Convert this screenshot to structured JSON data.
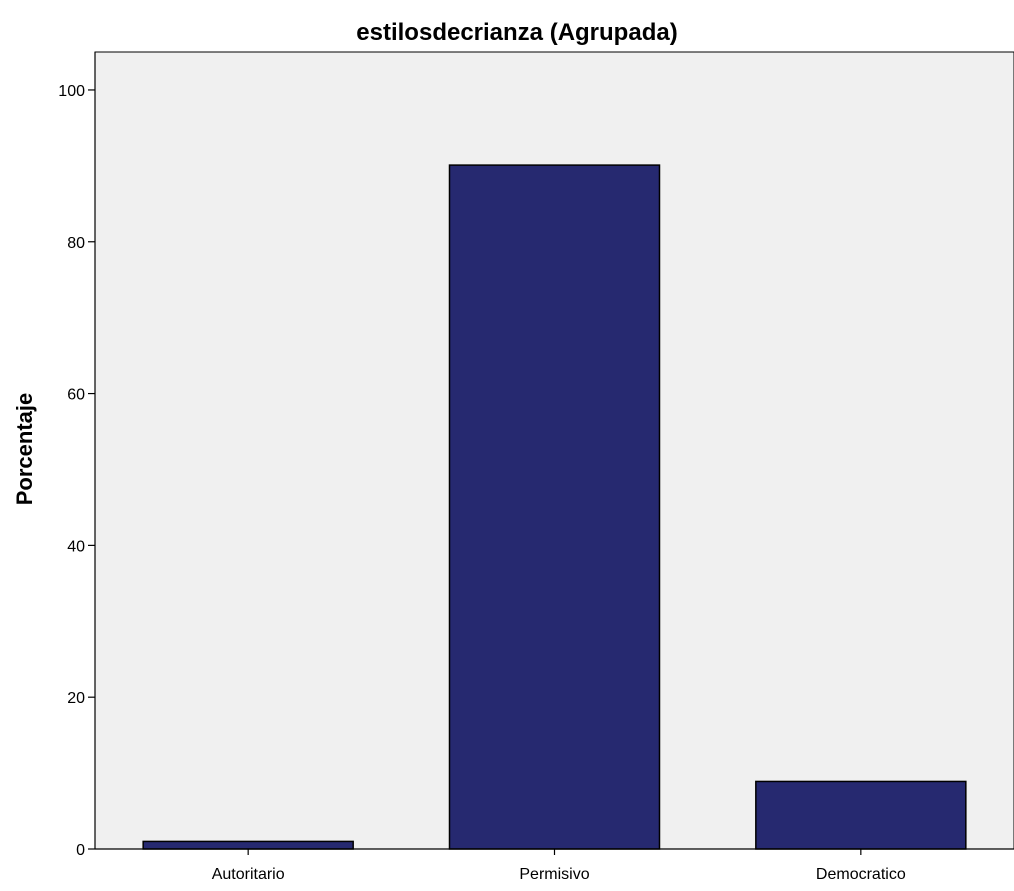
{
  "chart_data": {
    "type": "bar",
    "title": "estilosdecrianza (Agrupada)",
    "xlabel": "",
    "ylabel": "Porcentaje",
    "categories": [
      "Autoritario",
      "Permisivo",
      "Democratico"
    ],
    "values": [
      1.0,
      90.1,
      8.9
    ],
    "ylim": [
      0,
      105
    ],
    "yticks": [
      0,
      20,
      40,
      60,
      80,
      100
    ],
    "grid": false,
    "colors": {
      "bar": "#262970",
      "bar_stroke": "#000000",
      "plot_background": "#f0f0f0",
      "page_background": "#ffffff"
    }
  }
}
